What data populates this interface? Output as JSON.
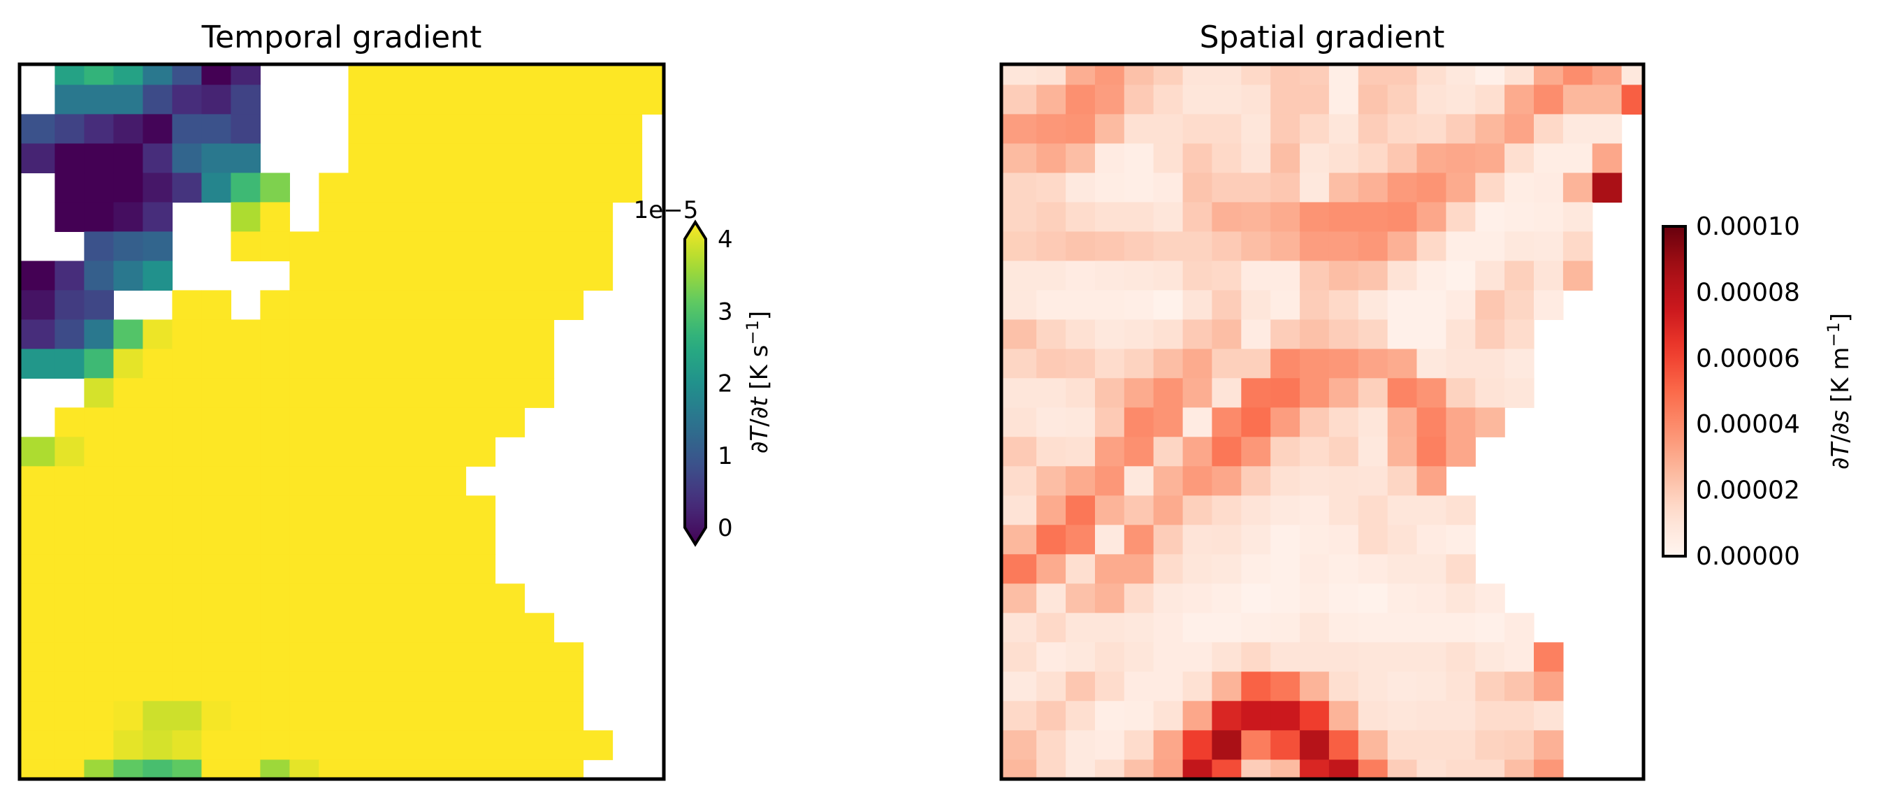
{
  "chart_data": [
    {
      "type": "heatmap",
      "title": "Temporal gradient",
      "colormap": "viridis",
      "clim": [
        0,
        4
      ],
      "colorbar": {
        "ticks": [
          0,
          1,
          2,
          3,
          4
        ],
        "tick_labels": [
          "0",
          "1",
          "2",
          "3",
          "4"
        ],
        "offset_text": "1e−5",
        "extend": "both",
        "label": {
          "d1": "∂",
          "v1": "T",
          "d2": "/∂",
          "v2": "t",
          "units": " [K s",
          "exp": "−1",
          "close": "]"
        }
      },
      "value_unit_scale": 1e-05,
      "missing": "white",
      "values": [
        [
          null,
          2.3,
          2.6,
          2.3,
          1.6,
          1.0,
          0,
          0.4,
          null,
          null,
          null,
          4,
          4,
          4,
          4,
          4,
          4,
          4,
          4,
          4,
          4,
          4
        ],
        [
          null,
          1.6,
          1.6,
          1.6,
          0.9,
          0.5,
          0.4,
          0.8,
          null,
          null,
          null,
          4,
          4,
          4,
          4,
          4,
          4,
          4,
          4,
          4,
          4,
          4
        ],
        [
          1.0,
          0.8,
          0.5,
          0.3,
          0.05,
          1.0,
          1.0,
          0.8,
          null,
          null,
          null,
          4,
          4,
          4,
          4,
          4,
          4,
          4,
          4,
          4,
          4,
          null
        ],
        [
          0.4,
          0,
          0,
          0,
          0.5,
          1.3,
          1.6,
          1.6,
          null,
          null,
          null,
          4,
          4,
          4,
          4,
          4,
          4,
          4,
          4,
          4,
          4,
          null
        ],
        [
          null,
          0,
          0,
          0,
          0.25,
          0.6,
          1.8,
          2.7,
          3.2,
          null,
          4,
          4,
          4,
          4,
          4,
          4,
          4,
          4,
          4,
          4,
          4,
          null
        ],
        [
          null,
          0,
          0,
          0.15,
          0.5,
          null,
          null,
          3.5,
          4,
          null,
          4,
          4,
          4,
          4,
          4,
          4,
          4,
          4,
          4,
          4,
          null,
          null
        ],
        [
          null,
          null,
          1.0,
          1.2,
          1.3,
          null,
          null,
          4,
          4,
          4,
          4,
          4,
          4,
          4,
          4,
          4,
          4,
          4,
          4,
          4,
          null,
          null
        ],
        [
          0,
          0.5,
          1.2,
          1.6,
          2.0,
          null,
          null,
          null,
          null,
          4,
          4,
          4,
          4,
          4,
          4,
          4,
          4,
          4,
          4,
          4,
          null,
          null
        ],
        [
          0.2,
          0.7,
          0.85,
          null,
          null,
          4,
          4,
          null,
          4,
          4,
          4,
          4,
          4,
          4,
          4,
          4,
          4,
          4,
          4,
          null,
          null,
          null
        ],
        [
          0.5,
          0.9,
          1.6,
          2.9,
          3.9,
          4,
          4,
          4,
          4,
          4,
          4,
          4,
          4,
          4,
          4,
          4,
          4,
          4,
          null,
          null,
          null,
          null
        ],
        [
          2.1,
          2.1,
          2.7,
          3.85,
          4,
          4,
          4,
          4,
          4,
          4,
          4,
          4,
          4,
          4,
          4,
          4,
          4,
          4,
          null,
          null,
          null,
          null
        ],
        [
          null,
          null,
          3.75,
          4,
          4,
          4,
          4,
          4,
          4,
          4,
          4,
          4,
          4,
          4,
          4,
          4,
          4,
          4,
          null,
          null,
          null,
          null
        ],
        [
          null,
          4,
          4,
          4,
          4,
          4,
          4,
          4,
          4,
          4,
          4,
          4,
          4,
          4,
          4,
          4,
          4,
          null,
          null,
          null,
          null,
          null
        ],
        [
          3.5,
          3.85,
          4,
          4,
          4,
          4,
          4,
          4,
          4,
          4,
          4,
          4,
          4,
          4,
          4,
          4,
          null,
          null,
          null,
          null,
          null,
          null
        ],
        [
          4,
          4,
          4,
          4,
          4,
          4,
          4,
          4,
          4,
          4,
          4,
          4,
          4,
          4,
          4,
          null,
          null,
          null,
          null,
          null,
          null,
          null
        ],
        [
          4,
          4,
          4,
          4,
          4,
          4,
          4,
          4,
          4,
          4,
          4,
          4,
          4,
          4,
          4,
          4,
          null,
          null,
          null,
          null,
          null,
          null
        ],
        [
          4,
          4,
          4,
          4,
          4,
          4,
          4,
          4,
          4,
          4,
          4,
          4,
          4,
          4,
          4,
          4,
          null,
          null,
          null,
          null,
          null,
          null
        ],
        [
          4,
          4,
          4,
          4,
          4,
          4,
          4,
          4,
          4,
          4,
          4,
          4,
          4,
          4,
          4,
          4,
          null,
          null,
          null,
          null,
          null,
          null
        ],
        [
          4,
          4,
          4,
          4,
          4,
          4,
          4,
          4,
          4,
          4,
          4,
          4,
          4,
          4,
          4,
          4,
          4,
          null,
          null,
          null,
          null,
          null
        ],
        [
          4,
          4,
          4,
          4,
          4,
          4,
          4,
          4,
          4,
          4,
          4,
          4,
          4,
          4,
          4,
          4,
          4,
          4,
          null,
          null,
          null,
          null
        ],
        [
          4,
          4,
          4,
          4,
          4,
          4,
          4,
          4,
          4,
          4,
          4,
          4,
          4,
          4,
          4,
          4,
          4,
          4,
          4,
          null,
          null,
          null
        ],
        [
          4,
          4,
          4,
          4,
          4,
          4,
          4,
          4,
          4,
          4,
          4,
          4,
          4,
          4,
          4,
          4,
          4,
          4,
          4,
          null,
          null,
          null
        ],
        [
          4,
          4,
          4,
          3.95,
          3.7,
          3.7,
          3.95,
          4,
          4,
          4,
          4,
          4,
          4,
          4,
          4,
          4,
          4,
          4,
          4,
          null,
          null,
          null
        ],
        [
          4,
          4,
          4,
          3.85,
          3.75,
          3.85,
          4,
          4,
          4,
          4,
          4,
          4,
          4,
          4,
          4,
          4,
          4,
          4,
          4,
          4,
          null,
          null
        ],
        [
          4,
          4,
          3.4,
          3.0,
          2.8,
          3.0,
          4,
          4,
          3.4,
          3.85,
          4,
          4,
          4,
          4,
          4,
          4,
          4,
          4,
          4,
          null,
          null,
          null
        ]
      ]
    },
    {
      "type": "heatmap",
      "title": "Spatial gradient",
      "colormap": "Reds",
      "clim": [
        0,
        10
      ],
      "colorbar": {
        "ticks": [
          0,
          2,
          4,
          6,
          8,
          10
        ],
        "tick_labels": [
          "0.00000",
          "0.00002",
          "0.00004",
          "0.00006",
          "0.00008",
          "0.00010"
        ],
        "extend": "neither",
        "label": {
          "d1": "∂",
          "v1": "T",
          "d2": "/∂",
          "v2": "s",
          "units": " [K m",
          "exp": "−1",
          "close": "]"
        }
      },
      "value_unit_scale": 1e-05,
      "missing": "white",
      "values": [
        [
          0.9,
          1.1,
          2.9,
          3.5,
          2.3,
          1.8,
          1.0,
          1.0,
          1.5,
          2.0,
          1.9,
          0.4,
          2.0,
          2.0,
          1.3,
          0.8,
          0.3,
          1.1,
          3.0,
          3.9,
          3.2,
          0.8
        ],
        [
          1.9,
          2.7,
          3.8,
          3.4,
          2.0,
          1.4,
          0.9,
          0.9,
          1.1,
          2.0,
          2.0,
          0.4,
          2.2,
          1.8,
          1.1,
          0.9,
          1.3,
          3.0,
          3.9,
          2.6,
          2.6,
          5.3
        ],
        [
          3.4,
          3.6,
          3.7,
          2.5,
          1.2,
          1.2,
          1.4,
          1.4,
          0.9,
          2.0,
          1.5,
          0.9,
          1.9,
          1.5,
          1.4,
          1.9,
          2.6,
          3.2,
          1.5,
          0.7,
          0.7,
          null
        ],
        [
          2.5,
          3.0,
          2.4,
          0.6,
          0.4,
          1.2,
          2.0,
          1.5,
          1.0,
          2.4,
          0.9,
          1.2,
          1.5,
          2.1,
          3.0,
          3.1,
          3.0,
          1.3,
          0.5,
          0.5,
          3.1,
          null
        ],
        [
          1.6,
          1.5,
          0.7,
          0.5,
          0.4,
          0.6,
          2.2,
          1.9,
          1.9,
          2.1,
          0.8,
          2.4,
          2.8,
          3.5,
          3.7,
          3.0,
          1.5,
          0.5,
          0.6,
          2.7,
          8.6,
          null
        ],
        [
          1.6,
          1.8,
          1.4,
          1.2,
          1.2,
          0.9,
          2.0,
          2.8,
          2.7,
          3.0,
          3.7,
          3.8,
          3.8,
          3.9,
          3.1,
          1.5,
          0.3,
          0.4,
          0.5,
          0.8,
          null,
          null
        ],
        [
          1.8,
          2.0,
          2.2,
          2.1,
          1.9,
          1.7,
          1.7,
          2.0,
          2.4,
          2.7,
          3.4,
          3.4,
          3.6,
          2.8,
          1.5,
          0.4,
          0.4,
          0.8,
          0.7,
          1.5,
          null,
          null
        ],
        [
          0.8,
          0.8,
          0.6,
          0.7,
          0.8,
          0.9,
          1.6,
          1.5,
          0.6,
          0.6,
          2.0,
          2.4,
          2.2,
          1.1,
          0.4,
          0.2,
          1.0,
          1.8,
          1.0,
          2.6,
          null,
          null
        ],
        [
          0.8,
          0.5,
          0.5,
          0.5,
          0.4,
          0.2,
          1.0,
          1.9,
          0.9,
          0.5,
          1.9,
          1.5,
          0.8,
          0.3,
          0.3,
          0.6,
          2.1,
          1.6,
          0.6,
          null,
          null,
          null
        ],
        [
          2.3,
          1.6,
          1.2,
          0.8,
          0.9,
          1.2,
          2.0,
          2.4,
          0.6,
          1.9,
          2.3,
          1.9,
          1.6,
          0.3,
          0.3,
          1.1,
          1.9,
          1.4,
          null,
          null,
          null,
          null
        ],
        [
          1.6,
          2.0,
          1.9,
          1.4,
          1.7,
          2.4,
          3.0,
          1.8,
          1.8,
          4.0,
          3.7,
          3.6,
          3.2,
          3.0,
          0.8,
          1.0,
          1.0,
          0.7,
          null,
          null,
          null,
          null
        ],
        [
          0.9,
          0.9,
          1.2,
          2.2,
          3.0,
          3.7,
          2.9,
          1.0,
          4.5,
          4.6,
          3.7,
          2.8,
          1.8,
          4.2,
          3.7,
          1.7,
          1.1,
          0.9,
          null,
          null,
          null,
          null
        ],
        [
          1.1,
          0.7,
          0.8,
          2.0,
          4.0,
          3.7,
          0.6,
          4.0,
          4.8,
          3.4,
          2.0,
          1.4,
          0.9,
          2.8,
          4.2,
          3.1,
          2.6,
          null,
          null,
          null,
          null,
          null
        ],
        [
          2.0,
          1.3,
          1.2,
          3.3,
          3.8,
          1.6,
          3.1,
          4.6,
          3.6,
          1.7,
          1.4,
          1.7,
          0.8,
          2.7,
          4.3,
          3.1,
          null,
          null,
          null,
          null,
          null,
          null
        ],
        [
          1.4,
          2.4,
          3.0,
          3.6,
          0.8,
          2.7,
          3.5,
          3.1,
          1.9,
          1.2,
          1.0,
          1.1,
          1.0,
          1.6,
          3.2,
          null,
          null,
          null,
          null,
          null,
          null,
          null
        ],
        [
          1.1,
          3.0,
          4.6,
          2.7,
          2.1,
          3.0,
          1.8,
          1.4,
          1.0,
          0.7,
          0.6,
          1.1,
          1.4,
          0.9,
          0.9,
          1.2,
          null,
          null,
          null,
          null,
          null,
          null
        ],
        [
          2.6,
          4.7,
          4.1,
          0.7,
          3.7,
          1.9,
          1.0,
          1.1,
          0.7,
          0.3,
          0.5,
          0.6,
          1.4,
          1.1,
          0.6,
          0.4,
          null,
          null,
          null,
          null,
          null,
          null
        ],
        [
          4.5,
          3.0,
          1.3,
          3.0,
          3.0,
          1.4,
          0.9,
          0.8,
          0.4,
          0.3,
          0.6,
          0.4,
          0.6,
          0.8,
          0.8,
          1.4,
          null,
          null,
          null,
          null,
          null,
          null
        ],
        [
          2.4,
          0.9,
          2.3,
          2.7,
          1.4,
          0.7,
          0.6,
          0.4,
          0.15,
          0.3,
          0.5,
          0.3,
          0.2,
          0.5,
          0.6,
          0.9,
          0.6,
          null,
          null,
          null,
          null,
          null
        ],
        [
          1.0,
          1.5,
          0.9,
          0.9,
          0.8,
          0.6,
          0.3,
          0.3,
          0.4,
          0.5,
          0.9,
          0.5,
          0.4,
          0.4,
          0.4,
          0.4,
          0.3,
          0.6,
          null,
          null,
          null,
          null
        ],
        [
          1.3,
          0.6,
          0.8,
          1.2,
          0.9,
          0.6,
          0.6,
          1.1,
          1.5,
          1.0,
          1.0,
          1.0,
          0.9,
          0.9,
          0.9,
          1.2,
          0.8,
          0.6,
          4.3,
          null,
          null,
          null
        ],
        [
          0.7,
          1.2,
          2.1,
          1.4,
          0.6,
          0.6,
          1.2,
          2.7,
          5.2,
          4.6,
          2.7,
          1.3,
          0.9,
          0.7,
          0.8,
          1.1,
          1.8,
          2.2,
          3.2,
          null,
          null,
          null
        ],
        [
          1.5,
          2.0,
          1.3,
          0.4,
          0.5,
          1.1,
          3.1,
          7.0,
          7.5,
          7.5,
          6.2,
          2.7,
          1.1,
          0.9,
          1.0,
          1.0,
          1.4,
          1.4,
          1.1,
          null,
          null,
          null
        ],
        [
          2.4,
          1.5,
          0.7,
          0.6,
          1.4,
          3.1,
          6.2,
          8.6,
          4.4,
          5.7,
          8.2,
          5.3,
          2.6,
          1.3,
          1.3,
          1.3,
          1.7,
          1.8,
          2.8,
          null,
          null,
          null
        ],
        [
          2.6,
          1.5,
          0.7,
          1.3,
          2.3,
          3.2,
          7.8,
          5.8,
          1.9,
          2.5,
          7.0,
          7.8,
          4.4,
          1.9,
          1.2,
          1.4,
          1.4,
          2.4,
          3.6,
          null,
          null,
          null
        ]
      ]
    }
  ]
}
